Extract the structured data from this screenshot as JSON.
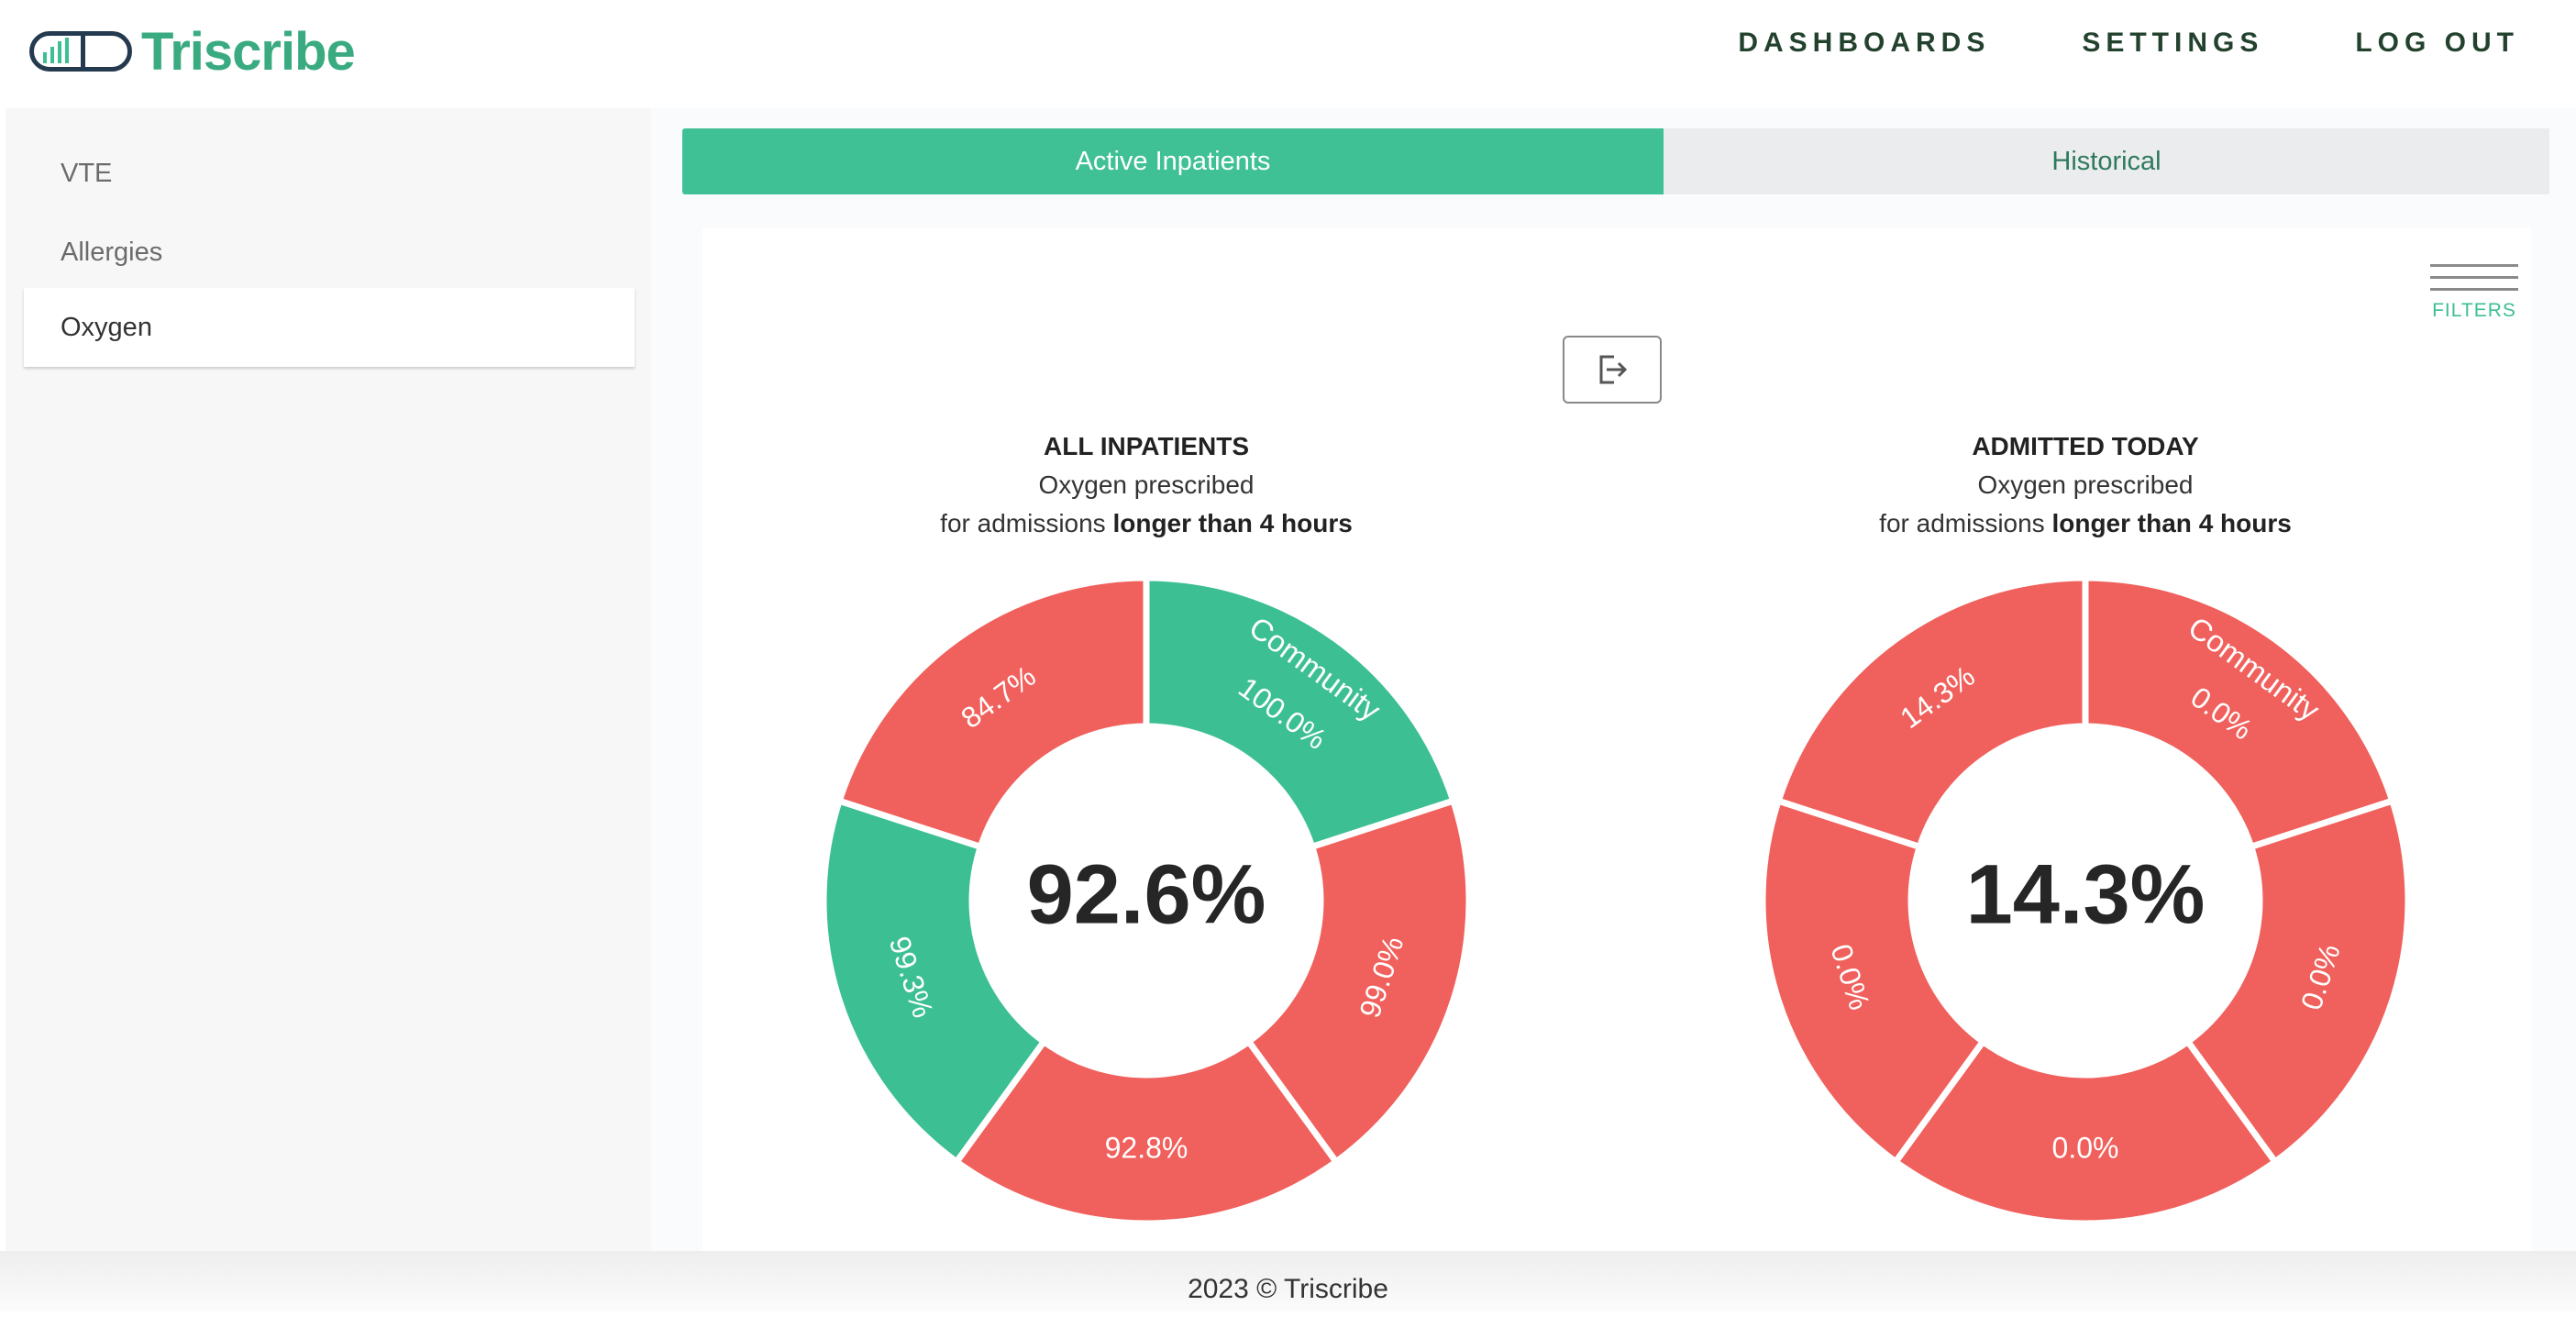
{
  "app": {
    "name": "Triscribe"
  },
  "nav": {
    "dashboards": "DASHBOARDS",
    "settings": "SETTINGS",
    "logout": "LOG OUT"
  },
  "sidebar": {
    "items": [
      {
        "label": "VTE"
      },
      {
        "label": "Allergies"
      },
      {
        "label": "Oxygen"
      }
    ],
    "active": "Oxygen"
  },
  "tabs": {
    "active_label": "Active Inpatients",
    "other_label": "Historical"
  },
  "filters": {
    "label": "FILTERS",
    "icon": "hamburger-icon"
  },
  "export": {
    "icon": "export-icon"
  },
  "colors": {
    "accent": "#3fc195",
    "bad": "#f0605c",
    "good": "#3cbf93"
  },
  "chart_data": [
    {
      "type": "donut",
      "title": "ALL INPATIENTS",
      "subtitle": "Oxygen prescribed",
      "caption_prefix": "for admissions",
      "caption_bold": "longer than 4 hours",
      "center_value": "92.6%",
      "segments": [
        {
          "label": "Community",
          "value": "100.0%",
          "status": "good"
        },
        {
          "label": "",
          "value": "99.0%",
          "status": "bad"
        },
        {
          "label": "",
          "value": "92.8%",
          "status": "bad"
        },
        {
          "label": "",
          "value": "99.3%",
          "status": "good"
        },
        {
          "label": "",
          "value": "84.7%",
          "status": "bad"
        }
      ]
    },
    {
      "type": "donut",
      "title": "ADMITTED TODAY",
      "subtitle": "Oxygen prescribed",
      "caption_prefix": "for admissions",
      "caption_bold": "longer than 4 hours",
      "center_value": "14.3%",
      "segments": [
        {
          "label": "Community",
          "value": "0.0%",
          "status": "bad"
        },
        {
          "label": "",
          "value": "0.0%",
          "status": "bad"
        },
        {
          "label": "",
          "value": "0.0%",
          "status": "bad"
        },
        {
          "label": "",
          "value": "0.0%",
          "status": "bad"
        },
        {
          "label": "",
          "value": "14.3%",
          "status": "bad"
        }
      ]
    }
  ],
  "footer": {
    "text": "2023 © Triscribe"
  }
}
